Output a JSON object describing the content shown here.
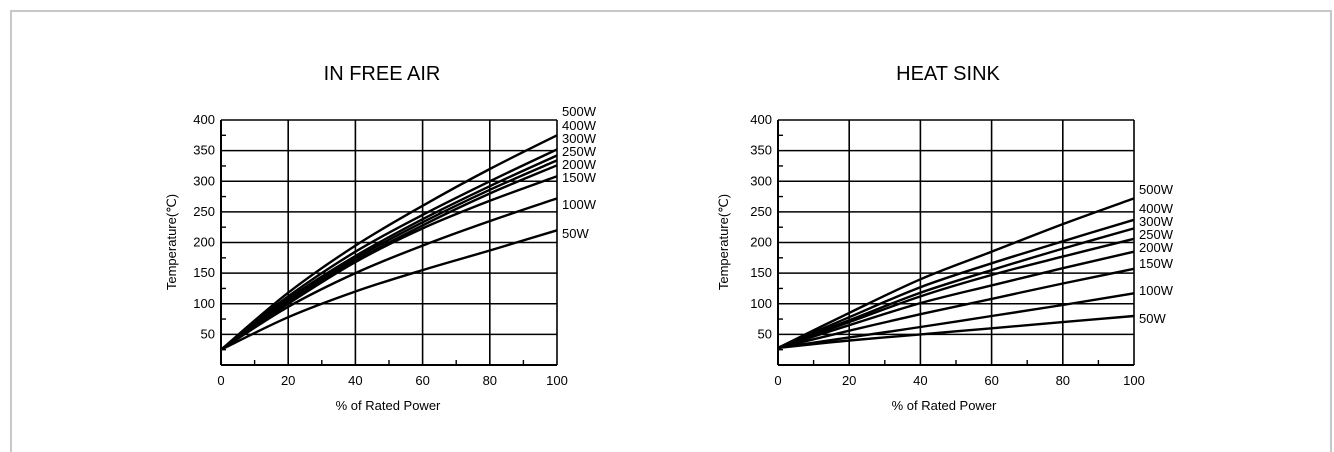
{
  "chart_data": [
    {
      "type": "line",
      "title": "IN FREE AIR",
      "xlabel": "% of Rated Power",
      "ylabel": "Temperature(℃)",
      "xlim": [
        0,
        100
      ],
      "ylim": [
        0,
        400
      ],
      "x_ticks": [
        0,
        20,
        40,
        60,
        80,
        100
      ],
      "y_ticks": [
        50,
        100,
        150,
        200,
        250,
        300,
        350,
        400
      ],
      "grid": true,
      "series": [
        {
          "name": "500W",
          "x": [
            0,
            20,
            40,
            60,
            80,
            100
          ],
          "y": [
            25,
            118,
            195,
            260,
            320,
            375
          ]
        },
        {
          "name": "400W",
          "x": [
            0,
            20,
            40,
            60,
            80,
            100
          ],
          "y": [
            25,
            112,
            185,
            245,
            300,
            352
          ]
        },
        {
          "name": "300W",
          "x": [
            0,
            20,
            40,
            60,
            80,
            100
          ],
          "y": [
            25,
            108,
            178,
            238,
            292,
            342
          ]
        },
        {
          "name": "250W",
          "x": [
            0,
            20,
            40,
            60,
            80,
            100
          ],
          "y": [
            25,
            105,
            174,
            233,
            286,
            334
          ]
        },
        {
          "name": "200W",
          "x": [
            0,
            20,
            40,
            60,
            80,
            100
          ],
          "y": [
            25,
            102,
            170,
            228,
            280,
            326
          ]
        },
        {
          "name": "150W",
          "x": [
            0,
            20,
            40,
            60,
            80,
            100
          ],
          "y": [
            25,
            100,
            168,
            223,
            268,
            308
          ]
        },
        {
          "name": "100W",
          "x": [
            0,
            20,
            40,
            60,
            80,
            100
          ],
          "y": [
            25,
            95,
            150,
            195,
            235,
            272
          ]
        },
        {
          "name": "50W",
          "x": [
            0,
            20,
            40,
            60,
            80,
            100
          ],
          "y": [
            25,
            78,
            120,
            155,
            187,
            220
          ]
        }
      ]
    },
    {
      "type": "line",
      "title": "HEAT SINK",
      "xlabel": "% of Rated Power",
      "ylabel": "Temperature(℃)",
      "xlim": [
        0,
        100
      ],
      "ylim": [
        0,
        400
      ],
      "x_ticks": [
        0,
        20,
        40,
        60,
        80,
        100
      ],
      "y_ticks": [
        50,
        100,
        150,
        200,
        250,
        300,
        350,
        400
      ],
      "grid": true,
      "series": [
        {
          "name": "500W",
          "x": [
            0,
            20,
            40,
            60,
            80,
            100
          ],
          "y": [
            28,
            85,
            140,
            185,
            230,
            272
          ]
        },
        {
          "name": "400W",
          "x": [
            0,
            20,
            40,
            60,
            80,
            100
          ],
          "y": [
            28,
            78,
            127,
            166,
            202,
            237
          ]
        },
        {
          "name": "300W",
          "x": [
            0,
            20,
            40,
            60,
            80,
            100
          ],
          "y": [
            28,
            73,
            118,
            155,
            190,
            223
          ]
        },
        {
          "name": "250W",
          "x": [
            0,
            20,
            40,
            60,
            80,
            100
          ],
          "y": [
            28,
            70,
            112,
            147,
            177,
            206
          ]
        },
        {
          "name": "200W",
          "x": [
            0,
            20,
            40,
            60,
            80,
            100
          ],
          "y": [
            28,
            65,
            101,
            130,
            158,
            185
          ]
        },
        {
          "name": "150W",
          "x": [
            0,
            20,
            40,
            60,
            80,
            100
          ],
          "y": [
            28,
            56,
            83,
            108,
            133,
            157
          ]
        },
        {
          "name": "100W",
          "x": [
            0,
            20,
            40,
            60,
            80,
            100
          ],
          "y": [
            28,
            45,
            62,
            80,
            98,
            117
          ]
        },
        {
          "name": "50W",
          "x": [
            0,
            20,
            40,
            60,
            80,
            100
          ],
          "y": [
            28,
            40,
            50,
            60,
            70,
            80
          ]
        }
      ]
    }
  ]
}
